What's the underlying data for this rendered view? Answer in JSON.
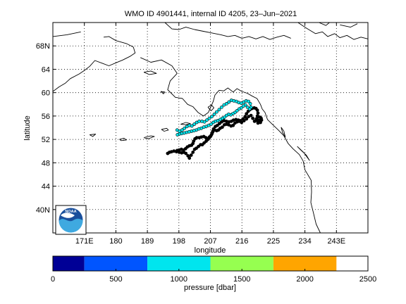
{
  "chart_data": {
    "type": "scatter",
    "title": "WMO ID 4901441, internal ID 4205, 23–Jun–2021",
    "xlabel": "longitude",
    "ylabel": "latitude",
    "xlim": [
      162,
      252
    ],
    "ylim": [
      36,
      72
    ],
    "grid": true,
    "x_ticks": [
      171,
      180,
      189,
      198,
      207,
      216,
      225,
      234,
      243
    ],
    "x_tick_labels": [
      "171E",
      "180",
      "189",
      "198",
      "207",
      "216",
      "225",
      "234",
      "243E"
    ],
    "y_ticks": [
      40,
      44,
      48,
      52,
      56,
      60,
      64,
      68
    ],
    "y_tick_labels": [
      "40N",
      "44",
      "48",
      "52",
      "56",
      "60",
      "64",
      "68N"
    ],
    "series": [
      {
        "color": "#000000",
        "points": [
          [
            194.8,
            49.6
          ],
          [
            195.3,
            49.8
          ],
          [
            195.9,
            49.9
          ],
          [
            196.6,
            50
          ],
          [
            197.3,
            49.9
          ],
          [
            198.1,
            49.8
          ],
          [
            198.8,
            49.7
          ],
          [
            199.4,
            49.8
          ],
          [
            200,
            49.6
          ],
          [
            200.6,
            49.2
          ],
          [
            201,
            48.8
          ],
          [
            201.5,
            49.3
          ],
          [
            202,
            49.8
          ],
          [
            202.5,
            50.3
          ],
          [
            203,
            50.5
          ],
          [
            203.6,
            50.8
          ],
          [
            204.2,
            51.1
          ],
          [
            204.7,
            51.1
          ],
          [
            205.2,
            51.4
          ],
          [
            205.8,
            51.7
          ],
          [
            206.3,
            52
          ],
          [
            206.7,
            52.4
          ],
          [
            207.2,
            52.7
          ],
          [
            207.6,
            53.2
          ],
          [
            207.9,
            53.8
          ],
          [
            208.4,
            54.2
          ],
          [
            209,
            54.4
          ],
          [
            209.6,
            54.7
          ],
          [
            210.2,
            55
          ],
          [
            210.9,
            55.2
          ],
          [
            211.6,
            55.1
          ],
          [
            212.3,
            55
          ],
          [
            213,
            55.1
          ],
          [
            213.6,
            55.3
          ],
          [
            214.3,
            55.4
          ],
          [
            215,
            55.3
          ],
          [
            215.6,
            55.2
          ],
          [
            216.3,
            55.5
          ],
          [
            216.9,
            55.9
          ],
          [
            217.3,
            56.4
          ],
          [
            217.8,
            56.8
          ],
          [
            218.3,
            57.1
          ],
          [
            218.9,
            57.3
          ],
          [
            219.5,
            57.4
          ],
          [
            220,
            57.3
          ],
          [
            220.4,
            57
          ],
          [
            220.6,
            56.5
          ],
          [
            220.4,
            56
          ],
          [
            220.1,
            55.5
          ],
          [
            220.5,
            55.1
          ],
          [
            221.1,
            55
          ],
          [
            221.4,
            55.4
          ],
          [
            221.2,
            55.8
          ],
          [
            220.7,
            55.9
          ],
          [
            220.3,
            55.5
          ],
          [
            220.8,
            55.2
          ],
          [
            221.6,
            55.3
          ],
          [
            221.3,
            54.9
          ],
          [
            220.6,
            54.8
          ],
          [
            220.2,
            55.3
          ],
          [
            221.5,
            55.6
          ],
          [
            219.6,
            55.1
          ],
          [
            219.1,
            55.6
          ],
          [
            218.6,
            56.1
          ],
          [
            217.9,
            55.9
          ],
          [
            217.3,
            55.5
          ],
          [
            216.6,
            55.2
          ],
          [
            215.9,
            54.9
          ],
          [
            215.2,
            55.1
          ],
          [
            214.6,
            55
          ],
          [
            214,
            54.8
          ],
          [
            213.5,
            54.4
          ],
          [
            212.9,
            54.3
          ],
          [
            212.2,
            54.5
          ],
          [
            211.6,
            54.6
          ],
          [
            211,
            54.5
          ],
          [
            210.4,
            54.1
          ],
          [
            209.8,
            53.9
          ],
          [
            209.3,
            53.6
          ],
          [
            208.8,
            53.5
          ],
          [
            208.2,
            53.6
          ],
          [
            207.7,
            53.4
          ],
          [
            207.4,
            52.9
          ],
          [
            207,
            52.5
          ],
          [
            206.6,
            52.2
          ],
          [
            206.2,
            52.1
          ],
          [
            205.7,
            52.3
          ],
          [
            205.1,
            52.5
          ],
          [
            204.4,
            52.4
          ],
          [
            203.8,
            52.3
          ],
          [
            203.1,
            52.3
          ],
          [
            202.6,
            52.1
          ],
          [
            202.2,
            51.7
          ],
          [
            202,
            51.3
          ],
          [
            201.6,
            51
          ],
          [
            201,
            50.9
          ],
          [
            200.4,
            50.7
          ],
          [
            199.9,
            50.4
          ],
          [
            199.3,
            50.2
          ],
          [
            198.7,
            50.3
          ],
          [
            198.1,
            50.2
          ],
          [
            197.5,
            50.1
          ]
        ]
      },
      {
        "color": "#00e5ee",
        "points": [
          [
            197.5,
            53.6
          ],
          [
            198.2,
            53.4
          ],
          [
            198.9,
            53.6
          ],
          [
            199.6,
            53.9
          ],
          [
            200.3,
            54.2
          ],
          [
            201,
            54.4
          ],
          [
            201.7,
            54.3
          ],
          [
            202.4,
            54.6
          ],
          [
            203.1,
            54.9
          ],
          [
            203.8,
            55.1
          ],
          [
            204.6,
            55.1
          ],
          [
            205.3,
            55
          ],
          [
            206,
            55.3
          ],
          [
            206.7,
            55.6
          ],
          [
            207.4,
            55.9
          ],
          [
            208.1,
            56.3
          ],
          [
            208.8,
            56.7
          ],
          [
            209.5,
            57.1
          ],
          [
            210.2,
            57.5
          ],
          [
            210.9,
            57.9
          ],
          [
            211.6,
            58.1
          ],
          [
            212.3,
            58.4
          ],
          [
            213,
            58.7
          ],
          [
            213.7,
            58.6
          ],
          [
            214.4,
            58.5
          ],
          [
            215.1,
            58.3
          ],
          [
            215.8,
            58.2
          ],
          [
            216.5,
            58.4
          ],
          [
            217.2,
            58.6
          ],
          [
            217.9,
            58.5
          ],
          [
            218.4,
            58.1
          ],
          [
            218.6,
            57.5
          ],
          [
            218.2,
            57.2
          ],
          [
            217.6,
            57.5
          ],
          [
            217,
            57.9
          ],
          [
            216.4,
            57.7
          ],
          [
            215.8,
            57.4
          ],
          [
            215.2,
            57.2
          ],
          [
            214.6,
            56.9
          ],
          [
            214,
            56.6
          ],
          [
            213.4,
            56.4
          ],
          [
            212.8,
            56.2
          ],
          [
            212.2,
            56.3
          ],
          [
            211.6,
            56.1
          ],
          [
            211,
            55.8
          ],
          [
            210.4,
            55.6
          ],
          [
            209.8,
            55.4
          ],
          [
            209.1,
            55.2
          ],
          [
            208.4,
            55.1
          ],
          [
            207.8,
            54.9
          ],
          [
            207.2,
            54.6
          ],
          [
            206.5,
            54.4
          ],
          [
            205.8,
            54.2
          ],
          [
            205.1,
            54.1
          ],
          [
            204.4,
            53.9
          ],
          [
            203.7,
            53.8
          ],
          [
            203,
            53.6
          ],
          [
            202.3,
            53.5
          ],
          [
            201.6,
            53.4
          ],
          [
            200.9,
            53.3
          ],
          [
            200.2,
            53.2
          ],
          [
            199.5,
            53.1
          ],
          [
            198.8,
            53
          ],
          [
            198.1,
            52.9
          ],
          [
            197.6,
            52.8
          ]
        ]
      }
    ],
    "colorbar": {
      "label": "pressure [dbar]",
      "tick_values": [
        0,
        500,
        1000,
        1500,
        2000,
        2500
      ],
      "tick_labels": [
        "0",
        "500",
        "1000",
        "1500",
        "2000",
        "2500"
      ],
      "bins": [
        {
          "from": 0,
          "to": 250,
          "color": "#000096"
        },
        {
          "from": 250,
          "to": 750,
          "color": "#0055ff"
        },
        {
          "from": 750,
          "to": 1250,
          "color": "#00e5ee"
        },
        {
          "from": 1250,
          "to": 1750,
          "color": "#96ff50"
        },
        {
          "from": 1750,
          "to": 2250,
          "color": "#ffa500"
        }
      ]
    },
    "logo_text": "NOAA"
  }
}
